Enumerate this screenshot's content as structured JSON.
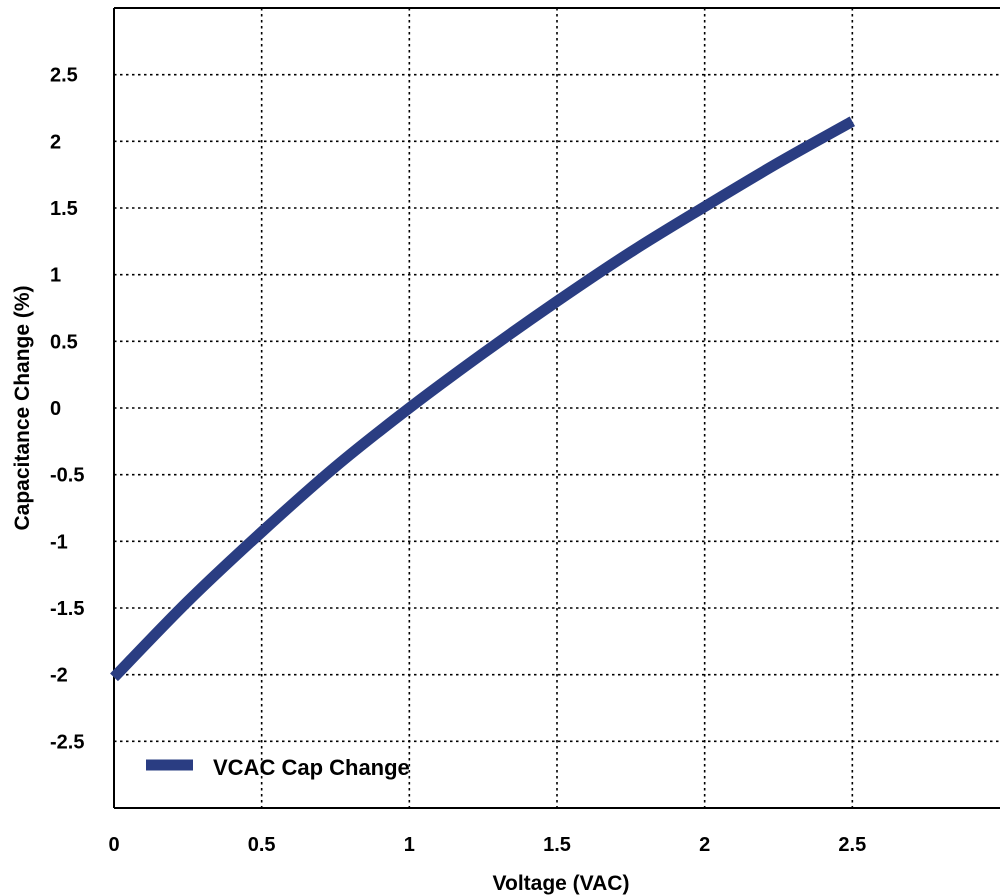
{
  "chart_data": {
    "type": "line",
    "xlabel": "Voltage (VAC)",
    "ylabel": "Capacitance Change (%)",
    "xlim": [
      0,
      3
    ],
    "ylim": [
      -3,
      3
    ],
    "x_ticks": [
      "0",
      "0.5",
      "1",
      "1.5",
      "2",
      "2.5"
    ],
    "y_ticks": [
      "2.5",
      "2",
      "1.5",
      "1",
      "0.5",
      "0",
      "-0.5",
      "-1",
      "-1.5",
      "-2",
      "-2.5"
    ],
    "grid": true,
    "legend_position": "bottom-left",
    "series": [
      {
        "name": "VCAC Cap Change",
        "color": "#2a3d82",
        "x": [
          0,
          0.25,
          0.5,
          0.75,
          1.0,
          1.25,
          1.5,
          1.75,
          2.0,
          2.25,
          2.5
        ],
        "y": [
          -2.02,
          -1.45,
          -0.93,
          -0.44,
          0.0,
          0.41,
          0.8,
          1.17,
          1.51,
          1.84,
          2.15
        ]
      }
    ]
  }
}
